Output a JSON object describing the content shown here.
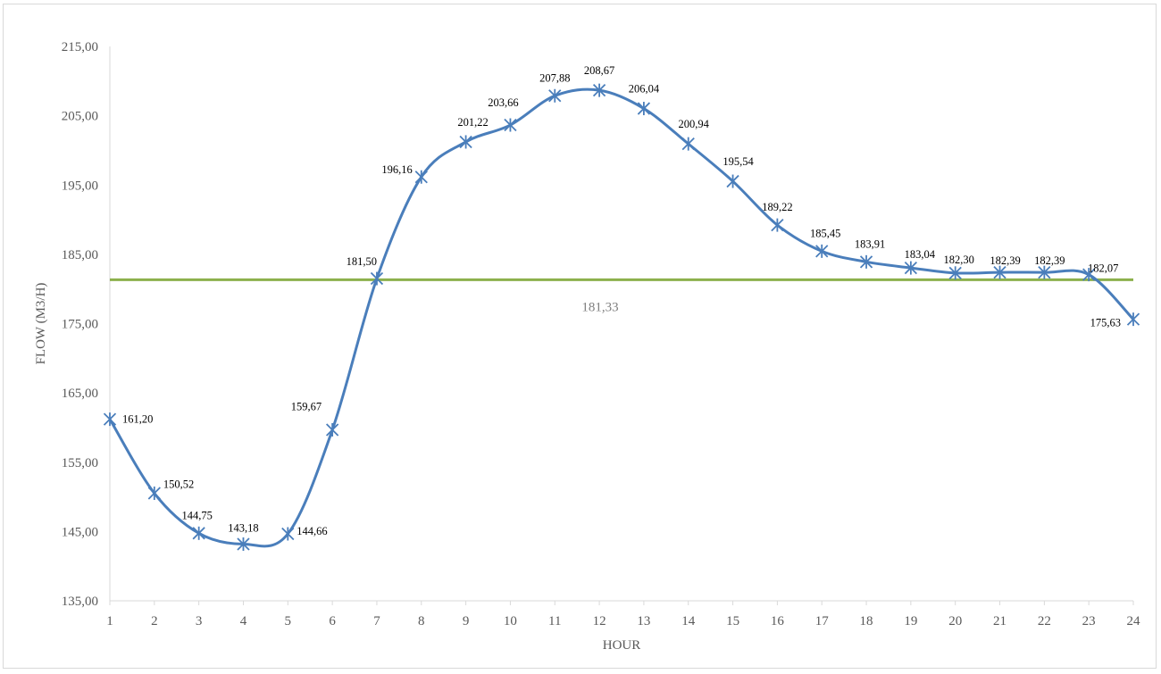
{
  "chart_data": {
    "type": "line",
    "title": "",
    "xlabel": "HOUR",
    "ylabel": "FLOW (M3/H)",
    "x": [
      1,
      2,
      3,
      4,
      5,
      6,
      7,
      8,
      9,
      10,
      11,
      12,
      13,
      14,
      15,
      16,
      17,
      18,
      19,
      20,
      21,
      22,
      23,
      24
    ],
    "ylim": [
      135,
      215
    ],
    "yticks": [
      "135,00",
      "145,00",
      "155,00",
      "165,00",
      "175,00",
      "185,00",
      "195,00",
      "205,00",
      "215,00"
    ],
    "series": [
      {
        "values": [
          161.2,
          150.52,
          144.75,
          143.18,
          144.66,
          159.67,
          181.5,
          196.16,
          201.22,
          203.66,
          207.88,
          208.67,
          206.04,
          200.94,
          195.54,
          189.22,
          185.45,
          183.91,
          183.04,
          182.3,
          182.39,
          182.39,
          182.07,
          175.63
        ],
        "labels": [
          "161,20",
          "150,52",
          "144,75",
          "143,18",
          "144,66",
          "159,67",
          "181,50",
          "196,16",
          "201,22",
          "203,66",
          "207,88",
          "208,67",
          "206,04",
          "200,94",
          "195,54",
          "189,22",
          "185,45",
          "183,91",
          "183,04",
          "182,30",
          "182,39",
          "182,39",
          "182,07",
          "175,63"
        ],
        "color": "#4a7ebb",
        "marker": "asterisk",
        "smooth": true
      }
    ],
    "reference_line": {
      "value": 181.33,
      "label": "181,33",
      "color": "#8cb04c"
    },
    "grid": false,
    "legend": "none"
  }
}
